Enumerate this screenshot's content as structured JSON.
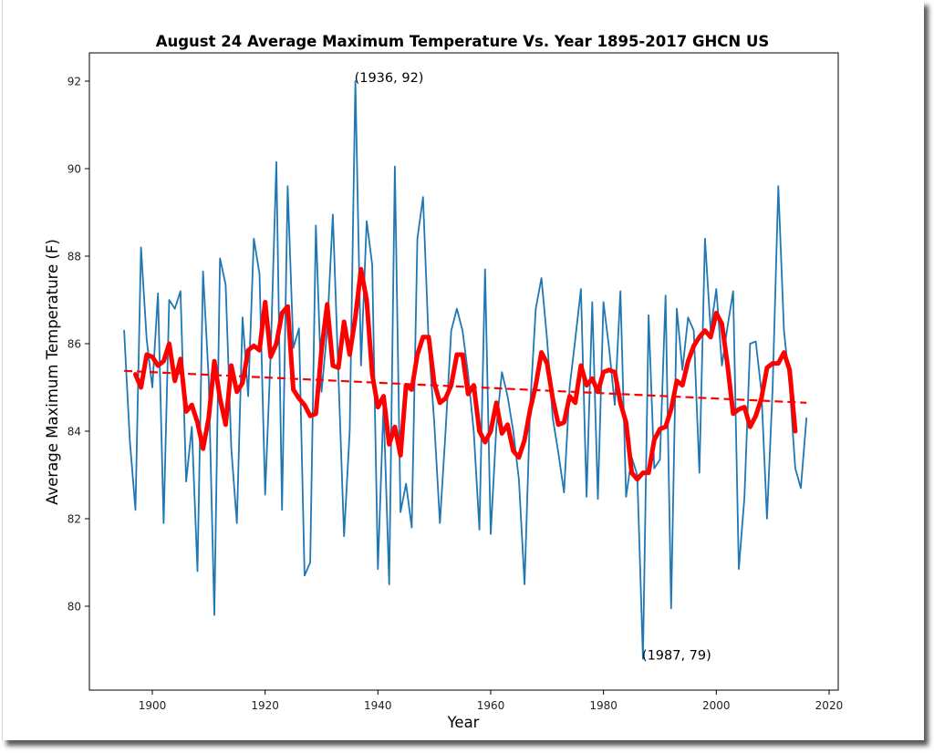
{
  "chart_data": {
    "type": "line",
    "title": "August 24 Average Maximum Temperature Vs. Year 1895-2017 GHCN US",
    "xlabel": "Year",
    "ylabel": "Average Maximum Temperature (F)",
    "xlim": [
      1889,
      2022
    ],
    "ylim": [
      78.0,
      92.6
    ],
    "xticks": [
      1900,
      1920,
      1940,
      1960,
      1980,
      2000,
      2020
    ],
    "yticks": [
      80,
      82,
      84,
      86,
      88,
      90,
      92
    ],
    "grid": false,
    "legend": null,
    "annotations": [
      {
        "x": 1936,
        "y": 92,
        "text": "(1936, 92)"
      },
      {
        "x": 1987,
        "y": 78.8,
        "text": "(1987, 79)"
      }
    ],
    "series": [
      {
        "name": "annual",
        "color": "#1f77b4",
        "style": "solid",
        "x_start": 1895,
        "values": [
          86.3,
          83.8,
          82.2,
          88.2,
          86.1,
          85.0,
          87.15,
          81.9,
          87.0,
          86.8,
          87.2,
          82.85,
          84.1,
          80.8,
          87.65,
          85.2,
          79.8,
          87.95,
          87.35,
          83.6,
          81.9,
          86.6,
          84.8,
          88.4,
          87.6,
          82.55,
          85.8,
          90.15,
          82.2,
          89.6,
          85.9,
          86.35,
          80.7,
          81.0,
          88.7,
          84.9,
          86.3,
          88.95,
          85.3,
          81.6,
          84.0,
          92.0,
          85.5,
          88.8,
          87.8,
          80.85,
          84.6,
          80.5,
          90.05,
          82.15,
          82.8,
          81.8,
          88.4,
          89.35,
          86.0,
          84.2,
          81.9,
          84.0,
          86.3,
          86.8,
          86.3,
          85.3,
          84.0,
          81.75,
          87.7,
          81.65,
          84.1,
          85.35,
          84.8,
          84.0,
          82.9,
          80.5,
          84.6,
          86.8,
          87.5,
          86.1,
          84.3,
          83.5,
          82.6,
          85.0,
          86.1,
          87.25,
          82.5,
          86.95,
          82.45,
          86.95,
          85.9,
          84.6,
          87.2,
          82.5,
          83.4,
          83.0,
          78.8,
          86.65,
          83.15,
          83.35,
          87.1,
          79.95,
          86.8,
          85.4,
          86.6,
          86.3,
          83.05,
          88.4,
          86.3,
          87.25,
          85.5,
          86.4,
          87.2,
          80.85,
          82.5,
          86.0,
          86.05,
          84.9,
          82.0,
          85.0,
          89.6,
          86.3,
          85.05,
          83.15,
          82.7,
          84.3
        ]
      },
      {
        "name": "running-mean",
        "color": "#ff0000",
        "style": "solid-thick",
        "x_start": 1897,
        "values": [
          85.3,
          85.0,
          85.75,
          85.7,
          85.5,
          85.6,
          86.0,
          85.15,
          85.65,
          84.45,
          84.6,
          84.2,
          83.6,
          84.3,
          85.6,
          84.75,
          84.15,
          85.5,
          84.9,
          85.1,
          85.85,
          85.95,
          85.85,
          86.95,
          85.7,
          86.0,
          86.7,
          86.85,
          84.95,
          84.75,
          84.6,
          84.35,
          84.4,
          85.85,
          86.9,
          85.5,
          85.45,
          86.5,
          85.75,
          86.6,
          87.7,
          87.0,
          85.3,
          84.55,
          84.8,
          83.7,
          84.1,
          83.45,
          85.05,
          84.95,
          85.75,
          86.15,
          86.15,
          85.1,
          84.65,
          84.75,
          85.05,
          85.75,
          85.75,
          84.85,
          85.05,
          84.0,
          83.75,
          84.0,
          84.65,
          83.95,
          84.15,
          83.55,
          83.4,
          83.8,
          84.5,
          85.05,
          85.8,
          85.55,
          84.75,
          84.15,
          84.2,
          84.8,
          84.65,
          85.5,
          85.05,
          85.2,
          84.9,
          85.35,
          85.4,
          85.35,
          84.65,
          84.2,
          83.05,
          82.9,
          83.05,
          83.05,
          83.8,
          84.05,
          84.1,
          84.5,
          85.15,
          85.05,
          85.6,
          85.95,
          86.15,
          86.3,
          86.15,
          86.7,
          86.45,
          85.5,
          84.4,
          84.5,
          84.55,
          84.1,
          84.35,
          84.75,
          85.45,
          85.55,
          85.55,
          85.8,
          85.4,
          84.0
        ]
      },
      {
        "name": "trend",
        "color": "#ff0000",
        "style": "dashed",
        "x": [
          1895,
          2016
        ],
        "values": [
          85.38,
          84.65
        ]
      }
    ]
  }
}
